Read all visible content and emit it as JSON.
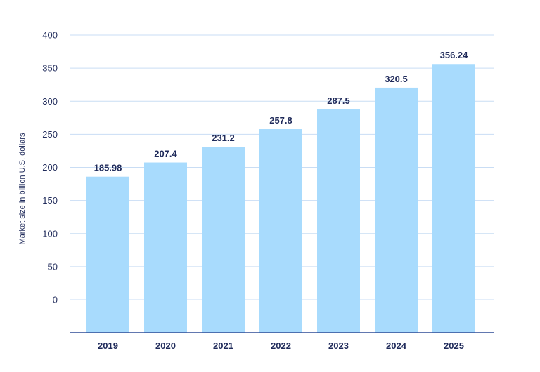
{
  "chart_data": {
    "type": "bar",
    "categories": [
      "2019",
      "2020",
      "2021",
      "2022",
      "2023",
      "2024",
      "2025"
    ],
    "values": [
      185.98,
      207.4,
      231.2,
      257.8,
      287.5,
      320.5,
      356.24
    ],
    "value_labels": [
      "185.98",
      "207.4",
      "231.2",
      "257.8",
      "287.5",
      "320.5",
      "356.24"
    ],
    "title": "",
    "xlabel": "",
    "ylabel": "Market size in billion U.S. dollars",
    "yticks": [
      0,
      50,
      100,
      150,
      200,
      250,
      300,
      350,
      400
    ],
    "ylim": [
      0,
      400
    ],
    "grid": true,
    "colors": {
      "bar": "#a8dbfd",
      "grid": "#c9ddf4",
      "axis": "#2e4c96",
      "text": "#1f2a5a"
    }
  }
}
